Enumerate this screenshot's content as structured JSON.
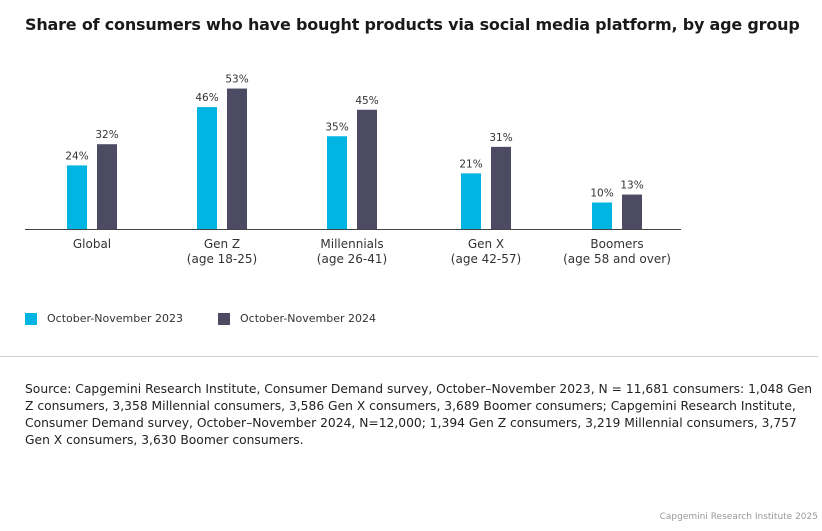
{
  "title": "Share of consumers who have bought products via social media platform, by age group",
  "chart_data": {
    "type": "bar",
    "title": "Share of consumers who have bought products via social media platform, by age group",
    "categories": [
      [
        "Global"
      ],
      [
        "Gen Z",
        "(age 18-25)"
      ],
      [
        "Millennials",
        "(age 26-41)"
      ],
      [
        "Gen X",
        "(age 42-57)"
      ],
      [
        "Boomers",
        "(age 58 and over)"
      ]
    ],
    "series": [
      {
        "name": "October-November 2023",
        "color": "#00b5e2",
        "values": [
          24,
          46,
          35,
          21,
          10
        ]
      },
      {
        "name": "October-November 2024",
        "color": "#4c4b63",
        "values": [
          32,
          53,
          45,
          31,
          13
        ]
      }
    ],
    "value_suffix": "%",
    "ylim": [
      0,
      60
    ],
    "grid": false,
    "legend_position": "bottom-left"
  },
  "source": "Source: Capgemini Research Institute, Consumer Demand survey, October–November 2023, N = 11,681 consumers: 1,048 Gen Z consumers, 3,358 Millennial consumers, 3,586 Gen X consumers, 3,689 Boomer consumers; Capgemini Research Institute, Consumer Demand survey, October–November 2024, N=12,000; 1,394 Gen Z consumers, 3,219 Millennial consumers, 3,757 Gen X consumers, 3,630 Boomer consumers.",
  "credit": "Capgemini Research Institute 2025"
}
